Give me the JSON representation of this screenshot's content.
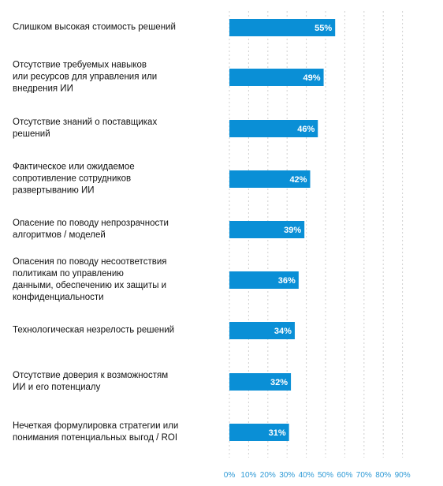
{
  "chart_data": {
    "type": "bar",
    "orientation": "horizontal",
    "categories": [
      "Слишком высокая стоимость решений",
      "Отсутствие требуемых навыков\nили ресурсов для управления или\nвнедрения ИИ",
      "Отсутствие знаний о поставщиках\nрешений",
      "Фактическое или ожидаемое\nсопротивление сотрудников\nразвертыванию ИИ",
      "Опасение по поводу непрозрачности\nалгоритмов / моделей",
      "Опасения по поводу несоответствия\nполитикам по управлению\nданными, обеспечению их защиты и\nконфиденциальности",
      "Технологическая незрелость решений",
      "Отсутствие доверия к возможностям\nИИ и его потенциалу",
      "Нечеткая формулировка стратегии или\nпонимания потенциальных выгод / ROI"
    ],
    "values": [
      55,
      49,
      46,
      42,
      39,
      36,
      34,
      32,
      31
    ],
    "value_labels": [
      "55%",
      "49%",
      "46%",
      "42%",
      "39%",
      "36%",
      "34%",
      "32%",
      "31%"
    ],
    "xlim": [
      0,
      90
    ],
    "x_ticks": [
      "0%",
      "10%",
      "20%",
      "30%",
      "40%",
      "50%",
      "60%",
      "70%",
      "80%",
      "90%"
    ],
    "grid": "vertical dotted",
    "title": "",
    "xlabel": "",
    "ylabel": ""
  },
  "colors": {
    "bar": "#0a8fd6",
    "grid": "#cfcfcf",
    "tick_text": "#2f9ad6",
    "label_text": "#111111",
    "value_text": "#ffffff"
  }
}
